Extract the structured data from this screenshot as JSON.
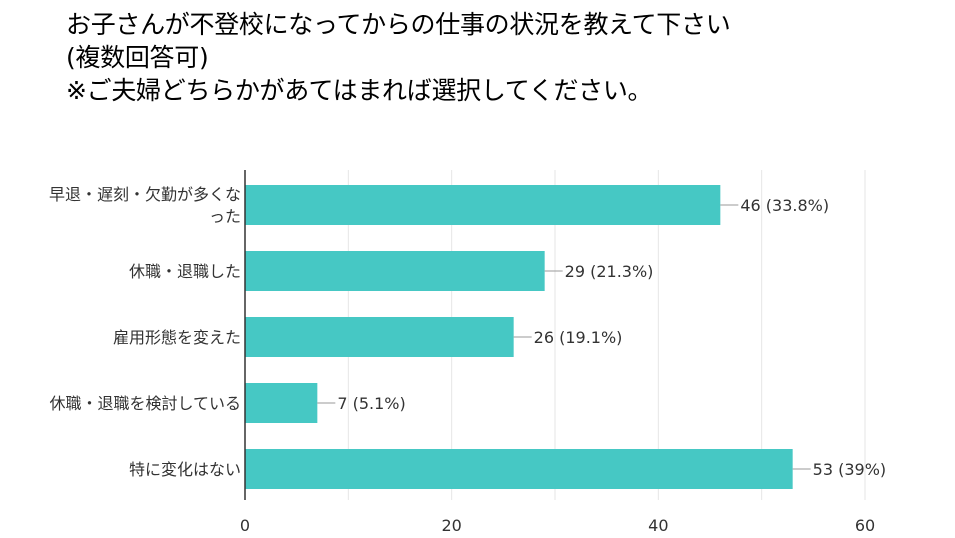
{
  "title_lines": [
    "お子さんが不登校になってからの仕事の状況を教えて下さい",
    "(複数回答可)",
    "※ご夫婦どちらかがあてはまれば選択してください。"
  ],
  "chart_data": {
    "type": "bar",
    "orientation": "horizontal",
    "categories": [
      [
        "早退・遅刻・欠勤が多くな",
        "った"
      ],
      [
        "休職・退職した"
      ],
      [
        "雇用形態を変えた"
      ],
      [
        "休職・退職を検討している"
      ],
      [
        "特に変化はない"
      ]
    ],
    "values": [
      46,
      29,
      26,
      7,
      53
    ],
    "value_labels": [
      "46 (33.8%)",
      "29 (21.3%)",
      "26 (19.1%)",
      "7 (5.1%)",
      "53 (39%)"
    ],
    "xlim": [
      0,
      60
    ],
    "xticks": [
      0,
      20,
      40,
      60
    ],
    "grid": true,
    "bar_color": "#46c8c4"
  }
}
